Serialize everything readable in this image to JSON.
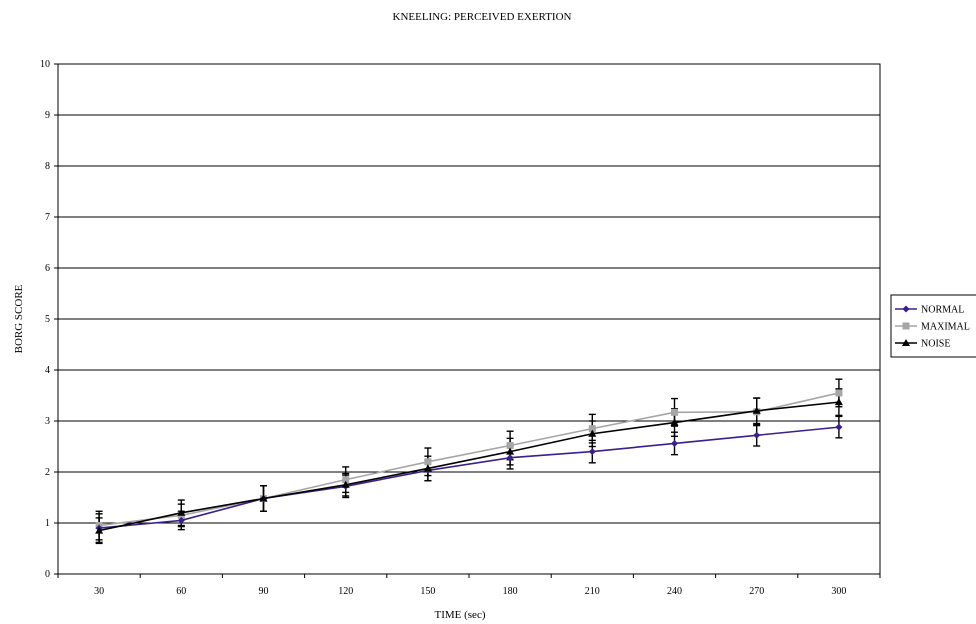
{
  "chart_data": {
    "type": "line",
    "title": "KNEELING: PERCEIVED EXERTION",
    "xlabel": "TIME (sec)",
    "ylabel": "BORG SCORE",
    "categories": [
      "30",
      "60",
      "90",
      "120",
      "150",
      "180",
      "210",
      "240",
      "270",
      "300"
    ],
    "ylim": [
      0,
      10
    ],
    "yticks": [
      "0",
      "1",
      "2",
      "3",
      "4",
      "5",
      "6",
      "7",
      "8",
      "9",
      "10"
    ],
    "grid": "horizontal",
    "legend_position": "right",
    "series": [
      {
        "name": "NORMAL",
        "color": "#3b1f8c",
        "marker": "diamond",
        "values": [
          0.9,
          1.05,
          1.48,
          1.72,
          2.03,
          2.28,
          2.4,
          2.56,
          2.72,
          2.88
        ],
        "error": [
          0.28,
          0.18,
          0.25,
          0.22,
          0.2,
          0.22,
          0.22,
          0.22,
          0.21,
          0.21
        ]
      },
      {
        "name": "MAXIMAL",
        "color": "#a6a6a6",
        "marker": "square",
        "values": [
          0.95,
          1.15,
          1.48,
          1.85,
          2.2,
          2.52,
          2.85,
          3.17,
          3.18,
          3.55
        ],
        "error": [
          0.28,
          0.22,
          0.25,
          0.25,
          0.27,
          0.28,
          0.28,
          0.27,
          0.27,
          0.27
        ]
      },
      {
        "name": "NOISE",
        "color": "#000000",
        "marker": "triangle",
        "values": [
          0.85,
          1.2,
          1.48,
          1.75,
          2.07,
          2.4,
          2.75,
          2.97,
          3.2,
          3.37
        ],
        "error": [
          0.25,
          0.25,
          0.25,
          0.22,
          0.24,
          0.26,
          0.25,
          0.27,
          0.25,
          0.26
        ]
      }
    ]
  }
}
